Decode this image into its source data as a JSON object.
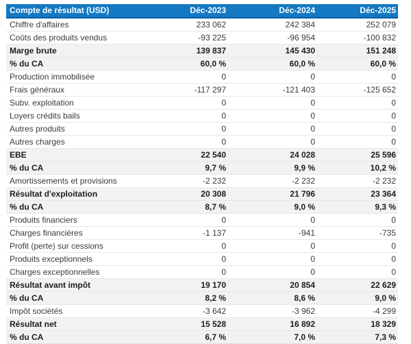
{
  "colors": {
    "header_bg": "#1479c2",
    "header_border": "#0e5d9d",
    "header_text": "#ffffff",
    "highlight_bg": "#f2f2f2",
    "row_border": "#e8e8e8",
    "text": "#3a3a3a",
    "bold_text": "#1d1d1d",
    "page_bg": "#ffffff"
  },
  "table": {
    "header": {
      "label": "Compte de résultat (USD)",
      "columns": [
        "Déc-2023",
        "Déc-2024",
        "Déc-2025"
      ]
    },
    "rows": [
      {
        "label": "Chiffre d'affaires",
        "values": [
          "233 062",
          "242 384",
          "252 079"
        ],
        "highlight": false
      },
      {
        "label": "Coûts des produits vendus",
        "values": [
          "-93 225",
          "-96 954",
          "-100 832"
        ],
        "highlight": false
      },
      {
        "label": "Marge brute",
        "values": [
          "139 837",
          "145 430",
          "151 248"
        ],
        "highlight": true
      },
      {
        "label": "% du CA",
        "values": [
          "60,0 %",
          "60,0 %",
          "60,0 %"
        ],
        "highlight": true
      },
      {
        "label": "Production immobilisée",
        "values": [
          "0",
          "0",
          "0"
        ],
        "highlight": false
      },
      {
        "label": "Frais généraux",
        "values": [
          "-117 297",
          "-121 403",
          "-125 652"
        ],
        "highlight": false
      },
      {
        "label": "Subv. exploitation",
        "values": [
          "0",
          "0",
          "0"
        ],
        "highlight": false
      },
      {
        "label": "Loyers crédits bails",
        "values": [
          "0",
          "0",
          "0"
        ],
        "highlight": false
      },
      {
        "label": "Autres produits",
        "values": [
          "0",
          "0",
          "0"
        ],
        "highlight": false
      },
      {
        "label": "Autres charges",
        "values": [
          "0",
          "0",
          "0"
        ],
        "highlight": false
      },
      {
        "label": "EBE",
        "values": [
          "22 540",
          "24 028",
          "25 596"
        ],
        "highlight": true
      },
      {
        "label": "% du CA",
        "values": [
          "9,7 %",
          "9,9 %",
          "10,2 %"
        ],
        "highlight": true
      },
      {
        "label": "Amortissements et provisions",
        "values": [
          "-2 232",
          "-2 232",
          "-2 232"
        ],
        "highlight": false
      },
      {
        "label": "Résultat d'exploitation",
        "values": [
          "20 308",
          "21 796",
          "23 364"
        ],
        "highlight": true
      },
      {
        "label": "% du CA",
        "values": [
          "8,7 %",
          "9,0 %",
          "9,3 %"
        ],
        "highlight": true
      },
      {
        "label": "Produits financiers",
        "values": [
          "0",
          "0",
          "0"
        ],
        "highlight": false
      },
      {
        "label": "Charges financières",
        "values": [
          "-1 137",
          "-941",
          "-735"
        ],
        "highlight": false
      },
      {
        "label": "Profit (perte) sur cessions",
        "values": [
          "0",
          "0",
          "0"
        ],
        "highlight": false
      },
      {
        "label": "Produits exceptionnels",
        "values": [
          "0",
          "0",
          "0"
        ],
        "highlight": false
      },
      {
        "label": "Charges exceptionnelles",
        "values": [
          "0",
          "0",
          "0"
        ],
        "highlight": false
      },
      {
        "label": "Résultat avant impôt",
        "values": [
          "19 170",
          "20 854",
          "22 629"
        ],
        "highlight": true
      },
      {
        "label": "% du CA",
        "values": [
          "8,2 %",
          "8,6 %",
          "9,0 %"
        ],
        "highlight": true
      },
      {
        "label": "Impôt sociétés",
        "values": [
          "-3 642",
          "-3 962",
          "-4 299"
        ],
        "highlight": false
      },
      {
        "label": "Résultat net",
        "values": [
          "15 528",
          "16 892",
          "18 329"
        ],
        "highlight": true
      },
      {
        "label": "% du CA",
        "values": [
          "6,7 %",
          "7,0 %",
          "7,3 %"
        ],
        "highlight": true
      }
    ]
  }
}
